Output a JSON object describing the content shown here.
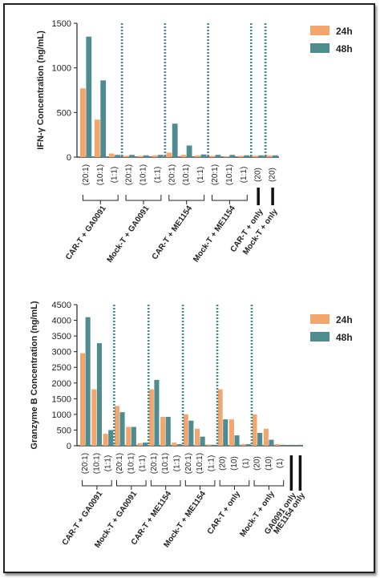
{
  "colors": {
    "24h": "#f2a66e",
    "48h": "#4f8c8f",
    "divider": "#3f8c8f",
    "axis": "#222222"
  },
  "chart_data": [
    {
      "type": "bar",
      "ylabel": "IFN-γ Concentration (ng/mL)",
      "ylim": [
        0,
        1500
      ],
      "yticks": [
        "0",
        "500",
        "1000",
        "1500"
      ],
      "legend": [
        "24h",
        "48h"
      ],
      "legend_position": "top-right",
      "categories": [
        "(20:1)",
        "(10:1)",
        "(1:1)",
        "(20:1)",
        "(10:1)",
        "(1:1)",
        "(20:1)",
        "(10:1)",
        "(1:1)",
        "(20:1)",
        "(10:1)",
        "(1:1)",
        "(20)",
        "(20)"
      ],
      "groups": [
        "CAR-T + GA0091",
        "Mock-T + GA0091",
        "CAR-T + ME1154",
        "Mock-T + ME1154",
        "CAR-T + only",
        "Mock-T + only"
      ],
      "series": [
        {
          "name": "24h",
          "values": [
            770,
            420,
            40,
            15,
            15,
            20,
            50,
            25,
            20,
            15,
            10,
            15,
            15,
            20
          ]
        },
        {
          "name": "48h",
          "values": [
            1350,
            860,
            25,
            25,
            20,
            25,
            375,
            130,
            30,
            25,
            25,
            20,
            20,
            20
          ]
        }
      ]
    },
    {
      "type": "bar",
      "ylabel": "Granzyme B Concentration (ng/mL)",
      "ylim": [
        0,
        4500
      ],
      "yticks": [
        "0",
        "500",
        "1000",
        "1500",
        "2000",
        "2500",
        "3000",
        "3500",
        "4000",
        "4500"
      ],
      "legend": [
        "24h",
        "48h"
      ],
      "legend_position": "top-right",
      "categories": [
        "(20:1)",
        "(10:1)",
        "(1:1)",
        "(20:1)",
        "(10:1)",
        "(1:1)",
        "(20:1)",
        "(10:1)",
        "(1:1)",
        "(20:1)",
        "(10:1)",
        "(1:1)",
        "(20)",
        "(10)",
        "(1)",
        "(20)",
        "(10)",
        "(1)"
      ],
      "groups": [
        "CAR-T + GA0091",
        "Mock-T + GA0091",
        "CAR-T + ME1154",
        "Mock-T + ME1154",
        "CAR-T + only",
        "Mock-T + only",
        "GA0091 only",
        "ME1154 only"
      ],
      "series": [
        {
          "name": "24h",
          "values": [
            2950,
            1800,
            380,
            1270,
            600,
            80,
            1800,
            920,
            100,
            1000,
            540,
            40,
            1800,
            840,
            50,
            1000,
            540,
            50
          ]
        },
        {
          "name": "48h",
          "values": [
            4100,
            3270,
            500,
            1070,
            600,
            100,
            2100,
            920,
            50,
            800,
            290,
            30,
            840,
            330,
            50,
            410,
            190,
            30
          ]
        }
      ],
      "single_bars": [
        {
          "label": "GA0091 only",
          "value": 30
        },
        {
          "label": "ME1154 only",
          "value": 30
        }
      ]
    }
  ]
}
